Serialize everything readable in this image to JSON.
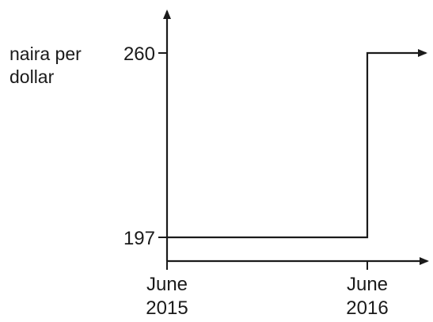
{
  "chart_data": {
    "type": "line",
    "ylabel_lines": [
      "naira per",
      "dollar"
    ],
    "y_ticks": [
      197,
      260
    ],
    "x_ticks": [
      {
        "line1": "June",
        "line2": "2015"
      },
      {
        "line1": "June",
        "line2": "2016"
      }
    ],
    "series": [
      {
        "points": [
          {
            "x": "June 2015",
            "y": 197
          },
          {
            "x": "June 2016",
            "y": 197
          },
          {
            "x": "June 2016",
            "y": 260
          }
        ],
        "continues_right": true
      }
    ],
    "grid": false,
    "legend": "none",
    "colors": {
      "line": "#1a1a1a",
      "axes": "#1a1a1a"
    }
  }
}
